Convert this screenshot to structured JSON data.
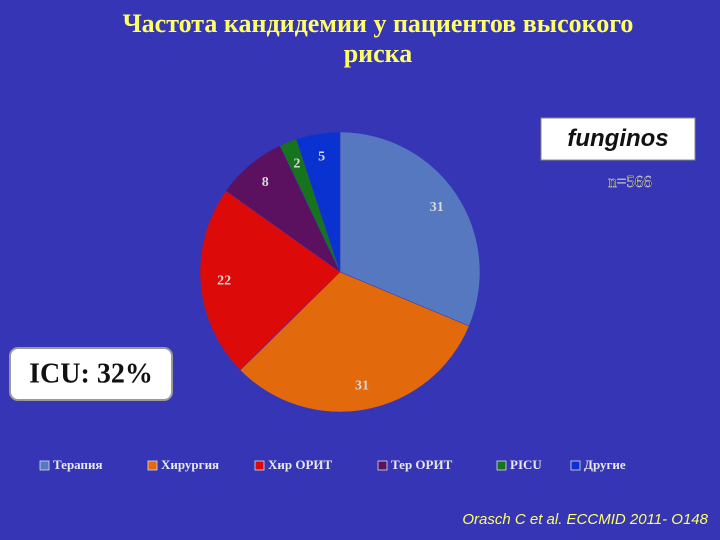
{
  "chart_data": {
    "type": "pie",
    "title": "Частота кандидемии у пациентов высокого риска",
    "categories": [
      "Терапия",
      "Хирургия",
      "Хир ОРИТ",
      "Тер ОРИТ",
      "PICU",
      "Другие"
    ],
    "values": [
      31,
      31,
      22,
      8,
      2,
      5
    ],
    "colors": [
      "#5578c0",
      "#e2690c",
      "#dd0a0a",
      "#5b1060",
      "#16751c",
      "#0a32d0"
    ],
    "legend": "bottom",
    "annotations": {
      "n": "n=566",
      "icu": "ICU: 32%",
      "source": "Orasch C et al. ECCMID  2011- O148",
      "logo": "funginos"
    }
  }
}
